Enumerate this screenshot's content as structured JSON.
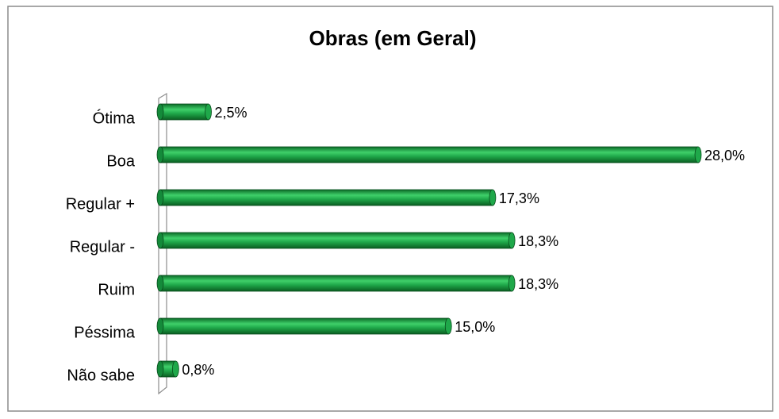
{
  "chart_data": {
    "type": "bar",
    "orientation": "horizontal",
    "title": "Obras (em Geral)",
    "categories": [
      "Ótima",
      "Boa",
      "Regular +",
      "Regular -",
      "Ruim",
      "Péssima",
      "Não sabe"
    ],
    "values": [
      2.5,
      28.0,
      17.3,
      18.3,
      18.3,
      15.0,
      0.8
    ],
    "value_labels": [
      "2,5%",
      "28,0%",
      "17,3%",
      "18,3%",
      "18,3%",
      "15,0%",
      "0,8%"
    ],
    "color": "#1fa84a"
  }
}
